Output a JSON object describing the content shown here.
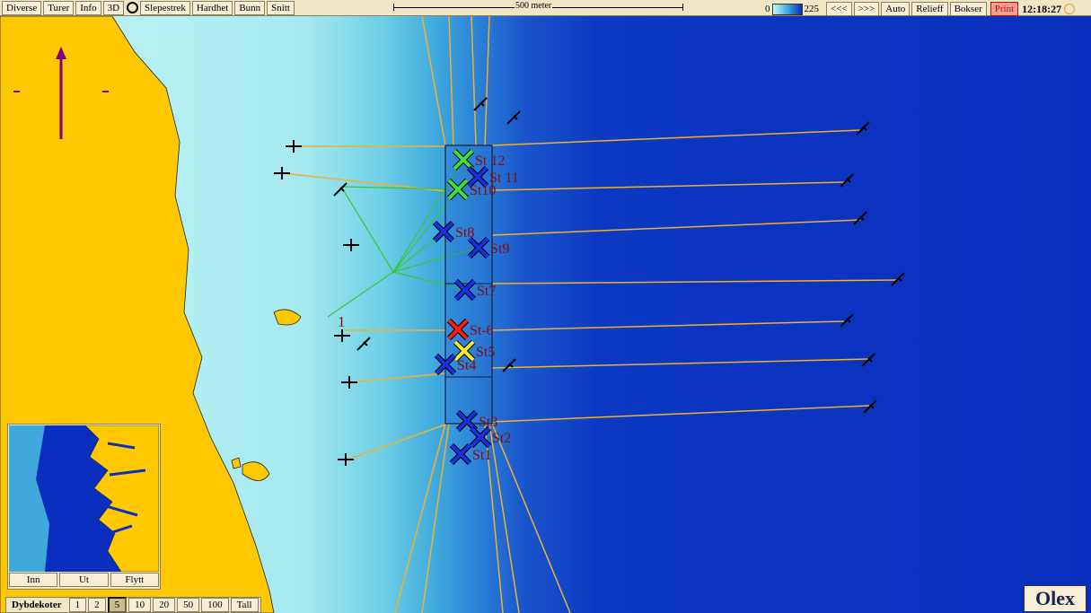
{
  "toolbar": {
    "left": [
      "Diverse",
      "Turer",
      "Info",
      "3D",
      "Slepestrek",
      "Hardhet",
      "Bunn",
      "Snitt"
    ],
    "scale": "500 meter",
    "depth_min": "0",
    "depth_max": "225",
    "right": [
      "<<<",
      ">>>",
      "Auto",
      "Relieff",
      "Bokser"
    ],
    "print": "Print",
    "clock": "12:18:27"
  },
  "map": {
    "label": "1",
    "stations": [
      {
        "label": "St 12",
        "color": "#3ee03e"
      },
      {
        "label": "St 11",
        "color": "#1a2ee0"
      },
      {
        "label": "St10",
        "color": "#3ee03e"
      },
      {
        "label": "St8",
        "color": "#1a2ee0"
      },
      {
        "label": "St9",
        "color": "#1a2ee0"
      },
      {
        "label": "St7",
        "color": "#1a2ee0"
      },
      {
        "label": "St-6",
        "color": "#ff1a10"
      },
      {
        "label": "St5",
        "color": "#ffe830"
      },
      {
        "label": "St4",
        "color": "#1a2ee0"
      },
      {
        "label": "St3",
        "color": "#1a2ee0"
      },
      {
        "label": "St2",
        "color": "#1a2ee0"
      },
      {
        "label": "St1",
        "color": "#1a2ee0"
      }
    ]
  },
  "inset": {
    "buttons": [
      "Inn",
      "Ut",
      "Flytt"
    ]
  },
  "depth_bar": {
    "label": "Dybdekoter",
    "buttons": [
      "1",
      "2",
      "5",
      "10",
      "20",
      "50",
      "100",
      "Tall"
    ],
    "selected": 2
  },
  "logo": "Olex"
}
